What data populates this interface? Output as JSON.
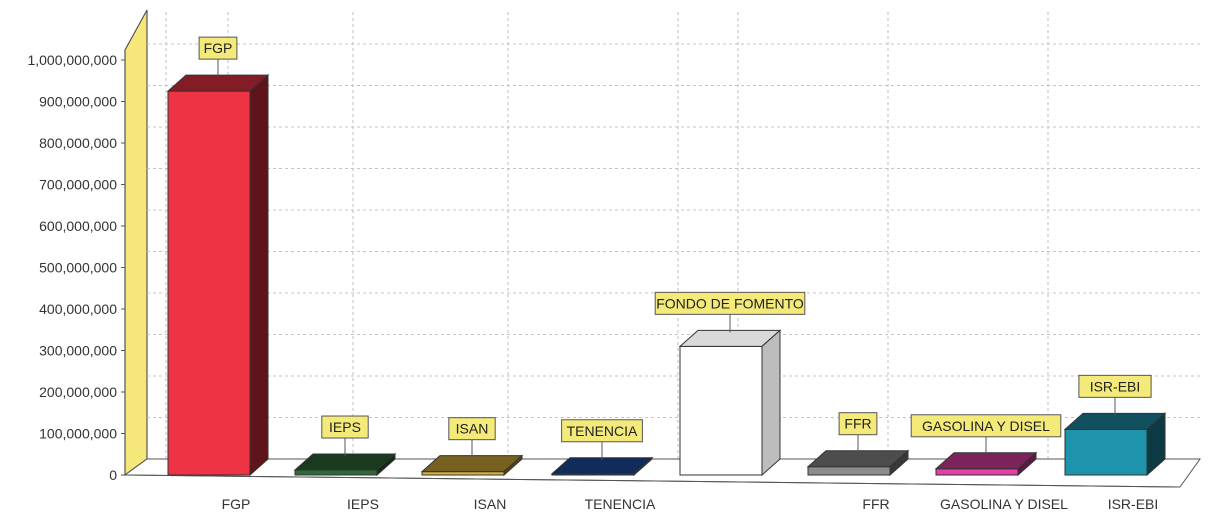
{
  "chart_data": {
    "type": "bar",
    "title": "",
    "xlabel": "",
    "ylabel": "",
    "ylim": [
      0,
      1000000000
    ],
    "yticks": [
      "0",
      "100,000,000",
      "200,000,000",
      "300,000,000",
      "400,000,000",
      "500,000,000",
      "600,000,000",
      "700,000,000",
      "800,000,000",
      "900,000,000",
      "1,000,000,000"
    ],
    "grid": true,
    "categories": [
      "FGP",
      "IEPS",
      "ISAN",
      "TENENCIA",
      "",
      "FFR",
      "GASOLINA Y DISEL",
      "ISR-EBI"
    ],
    "data_labels": [
      "FGP",
      "IEPS",
      "ISAN",
      "TENENCIA",
      "FONDO DE FOMENTO",
      "FFR",
      "GASOLINA Y DISEL",
      "ISR-EBI"
    ],
    "values": [
      925000000,
      12000000,
      8000000,
      3000000,
      310000000,
      20000000,
      15000000,
      110000000
    ],
    "colors": [
      "#ee3344",
      "#2e6a38",
      "#d8b13c",
      "#1e4fa6",
      "#ffffff",
      "#8c8c8c",
      "#e23fa8",
      "#1e94ac"
    ],
    "3d": true,
    "label_box_color": "#f4ea7a",
    "wall_color": "#f5e77a"
  }
}
